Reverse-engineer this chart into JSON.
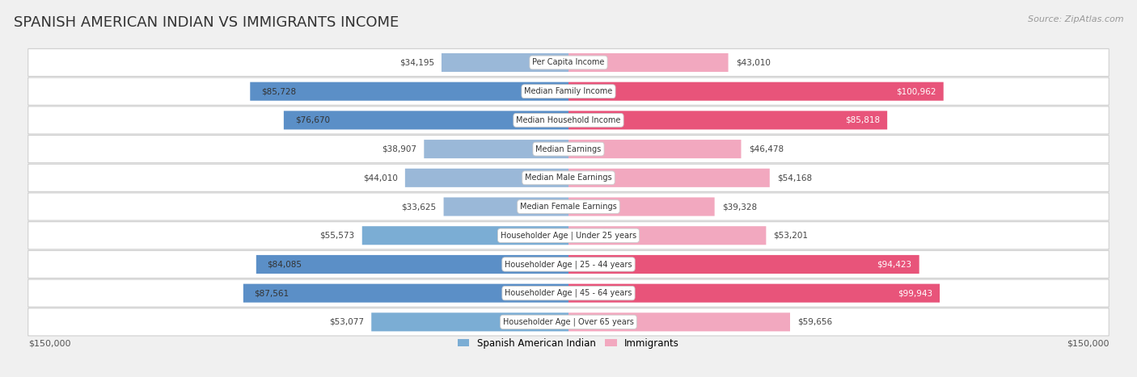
{
  "title": "SPANISH AMERICAN INDIAN VS IMMIGRANTS INCOME",
  "source": "Source: ZipAtlas.com",
  "categories": [
    "Per Capita Income",
    "Median Family Income",
    "Median Household Income",
    "Median Earnings",
    "Median Male Earnings",
    "Median Female Earnings",
    "Householder Age | Under 25 years",
    "Householder Age | 25 - 44 years",
    "Householder Age | 45 - 64 years",
    "Householder Age | Over 65 years"
  ],
  "spanish_values": [
    34195,
    85728,
    76670,
    38907,
    44010,
    33625,
    55573,
    84085,
    87561,
    53077
  ],
  "immigrant_values": [
    43010,
    100962,
    85818,
    46478,
    54168,
    39328,
    53201,
    94423,
    99943,
    59656
  ],
  "spanish_labels": [
    "$34,195",
    "$85,728",
    "$76,670",
    "$38,907",
    "$44,010",
    "$33,625",
    "$55,573",
    "$84,085",
    "$87,561",
    "$53,077"
  ],
  "immigrant_labels": [
    "$43,010",
    "$100,962",
    "$85,818",
    "$46,478",
    "$54,168",
    "$39,328",
    "$53,201",
    "$94,423",
    "$99,943",
    "$59,656"
  ],
  "spanish_color_light": "#9ab8d8",
  "spanish_color_medium": "#7badd4",
  "spanish_color_dark": "#5b8fc7",
  "immigrant_color_light": "#f2a8bf",
  "immigrant_color_dark": "#e8547a",
  "max_value": 150000,
  "label_spanish": "Spanish American Indian",
  "label_immigrant": "Immigrants",
  "background_color": "#f0f0f0",
  "row_bg_color": "#ffffff",
  "title_fontsize": 13,
  "tick_label": "$150,000",
  "sp_dark_threshold": 60000,
  "im_dark_threshold": 85000
}
